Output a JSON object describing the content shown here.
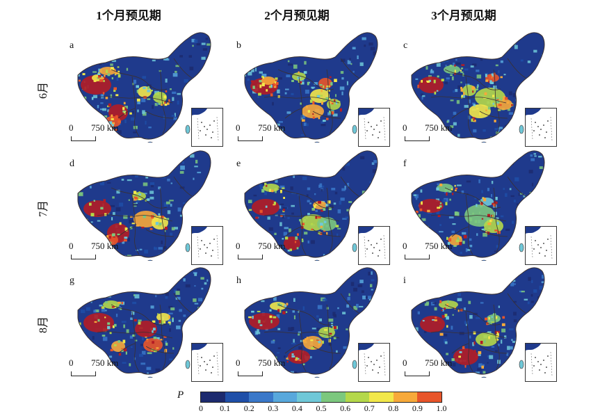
{
  "columns": [
    "1个月预见期",
    "2个月预见期",
    "3个月预见期"
  ],
  "rows": [
    "6月",
    "7月",
    "8月"
  ],
  "panel_letters": [
    "a",
    "b",
    "c",
    "d",
    "e",
    "f",
    "g",
    "h",
    "i"
  ],
  "scale": {
    "zero": "0",
    "distance": "750 km"
  },
  "legend": {
    "title": "P",
    "ticks": [
      "0",
      "0.1",
      "0.2",
      "0.3",
      "0.4",
      "0.5",
      "0.6",
      "0.7",
      "0.8",
      "0.9",
      "1.0"
    ],
    "colors": [
      "#1c2a6e",
      "#1f4fa8",
      "#3a78c9",
      "#58a8dc",
      "#6fc8d8",
      "#7cc87e",
      "#b4d84a",
      "#f2e84a",
      "#f7a93a",
      "#e8552a",
      "#b31d25"
    ]
  },
  "map_colors": {
    "land_base": "#1f3a8c",
    "border": "#3a3030"
  }
}
